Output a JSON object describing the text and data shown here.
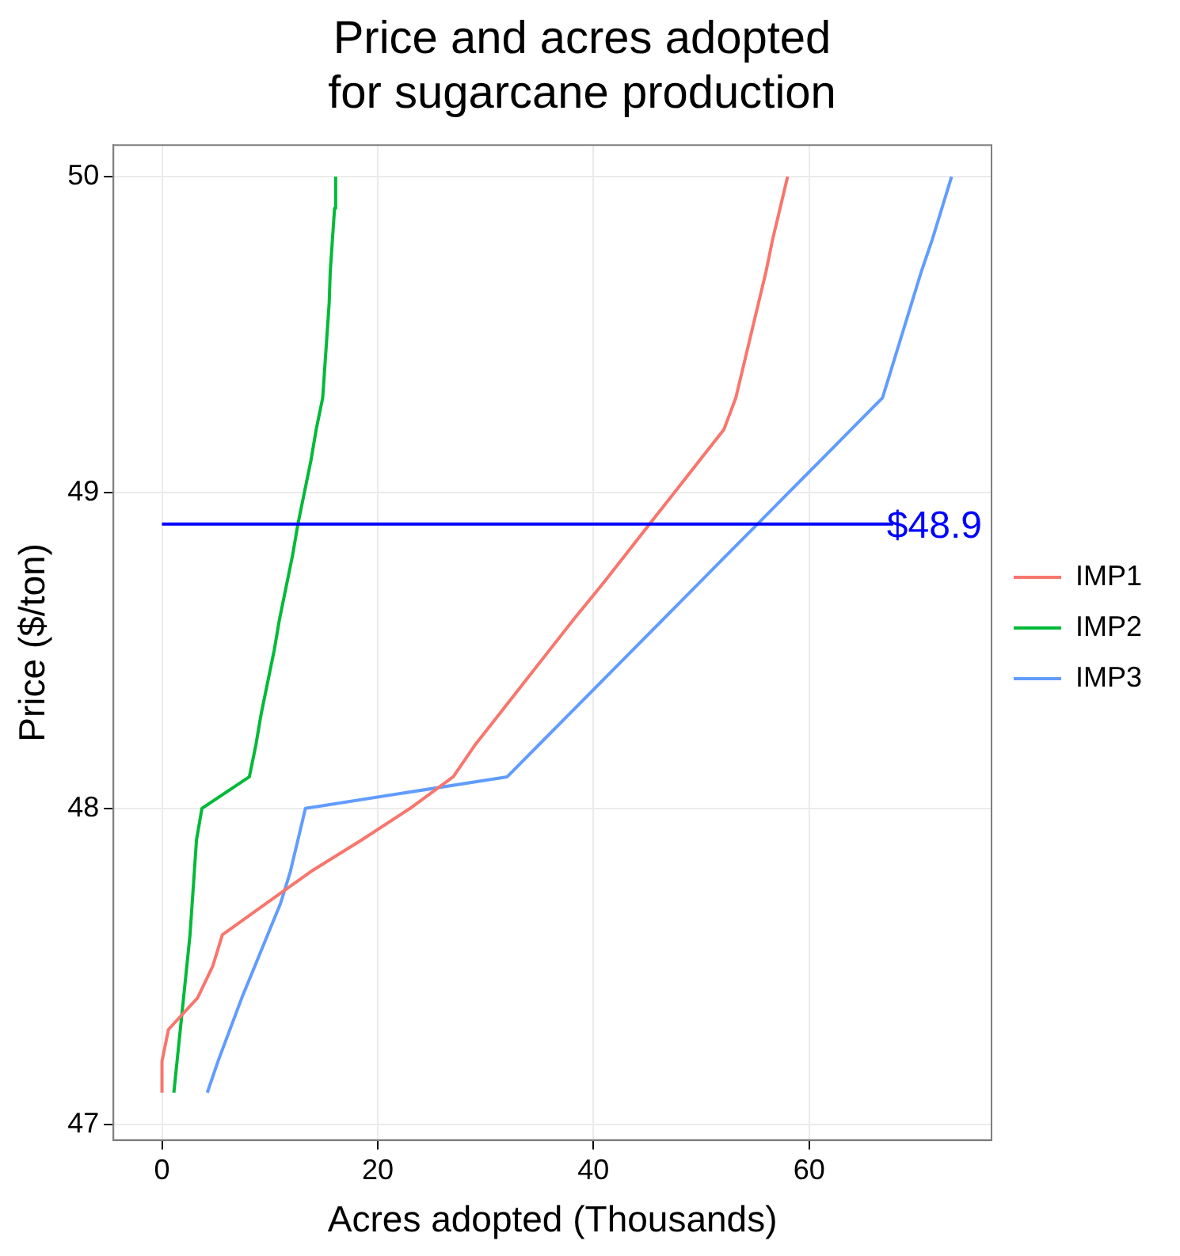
{
  "chart_data": {
    "type": "line",
    "title": "Price and acres adopted for sugarcane production",
    "xlabel": "Acres adopted (Thousands)",
    "ylabel": "Price ($/ton)",
    "xlim": [
      -4.5,
      76.9
    ],
    "xticks": [
      0,
      20,
      40,
      60
    ],
    "ylim": [
      46.95,
      50.1
    ],
    "yticks": [
      47,
      48,
      49,
      50
    ],
    "grid": true,
    "legend": "right",
    "marker": "none",
    "series": [
      {
        "name": "IMP1",
        "color": "#f8766d",
        "x": [
          0,
          0,
          0.6,
          3.3,
          4.7,
          5.6,
          9.7,
          13.8,
          18.5,
          23,
          27,
          29,
          31.3,
          33.6,
          35.9,
          38.2,
          40.6,
          42.9,
          45.2,
          47.5,
          49.8,
          52.1,
          53.2,
          53.9,
          54.6,
          55.3,
          56,
          56.6,
          57.3,
          58
        ],
        "values": [
          47.1,
          47.2,
          47.3,
          47.4,
          47.5,
          47.6,
          47.7,
          47.8,
          47.9,
          48.0,
          48.1,
          48.2,
          48.3,
          48.4,
          48.5,
          48.6,
          48.7,
          48.8,
          48.9,
          49.0,
          49.1,
          49.2,
          49.3,
          49.4,
          49.5,
          49.6,
          49.7,
          49.8,
          49.9,
          50.0
        ]
      },
      {
        "name": "IMP2",
        "color": "#00ba38",
        "x": [
          1.1,
          1.4,
          1.7,
          2.0,
          2.3,
          2.6,
          2.8,
          3.0,
          3.2,
          3.7,
          8.1,
          8.7,
          9.2,
          9.8,
          10.4,
          10.9,
          11.5,
          12.1,
          12.6,
          13.2,
          13.8,
          14.3,
          14.9,
          15.1,
          15.3,
          15.5,
          15.6,
          15.8,
          16.0,
          16.1
        ],
        "values": [
          47.1,
          47.2,
          47.3,
          47.4,
          47.5,
          47.6,
          47.7,
          47.8,
          47.9,
          48.0,
          48.1,
          48.2,
          48.3,
          48.4,
          48.5,
          48.6,
          48.7,
          48.8,
          48.9,
          49.0,
          49.1,
          49.2,
          49.3,
          49.4,
          49.5,
          49.6,
          49.7,
          49.8,
          49.9,
          50.0
        ]
      },
      {
        "name": "IMP3",
        "color": "#619cff",
        "x": [
          4.2,
          5.2,
          6.3,
          7.4,
          8.6,
          9.8,
          11.0,
          11.9,
          12.6,
          13.3,
          32.0,
          34.9,
          37.8,
          40.7,
          43.6,
          46.5,
          49.4,
          52.3,
          55.2,
          58.1,
          61.0,
          63.9,
          66.8,
          67.7,
          68.6,
          69.5,
          70.4,
          71.4,
          72.3,
          73.2
        ],
        "values": [
          47.1,
          47.2,
          47.3,
          47.4,
          47.5,
          47.6,
          47.7,
          47.8,
          47.9,
          48.0,
          48.1,
          48.2,
          48.3,
          48.4,
          48.5,
          48.6,
          48.7,
          48.8,
          48.9,
          49.0,
          49.1,
          49.2,
          49.3,
          49.4,
          49.5,
          49.6,
          49.7,
          49.8,
          49.9,
          50.0
        ]
      }
    ],
    "ref_lines": [
      {
        "axis": "y",
        "value": 48.9,
        "label": "$48.9",
        "color": "#0000ff"
      }
    ]
  }
}
